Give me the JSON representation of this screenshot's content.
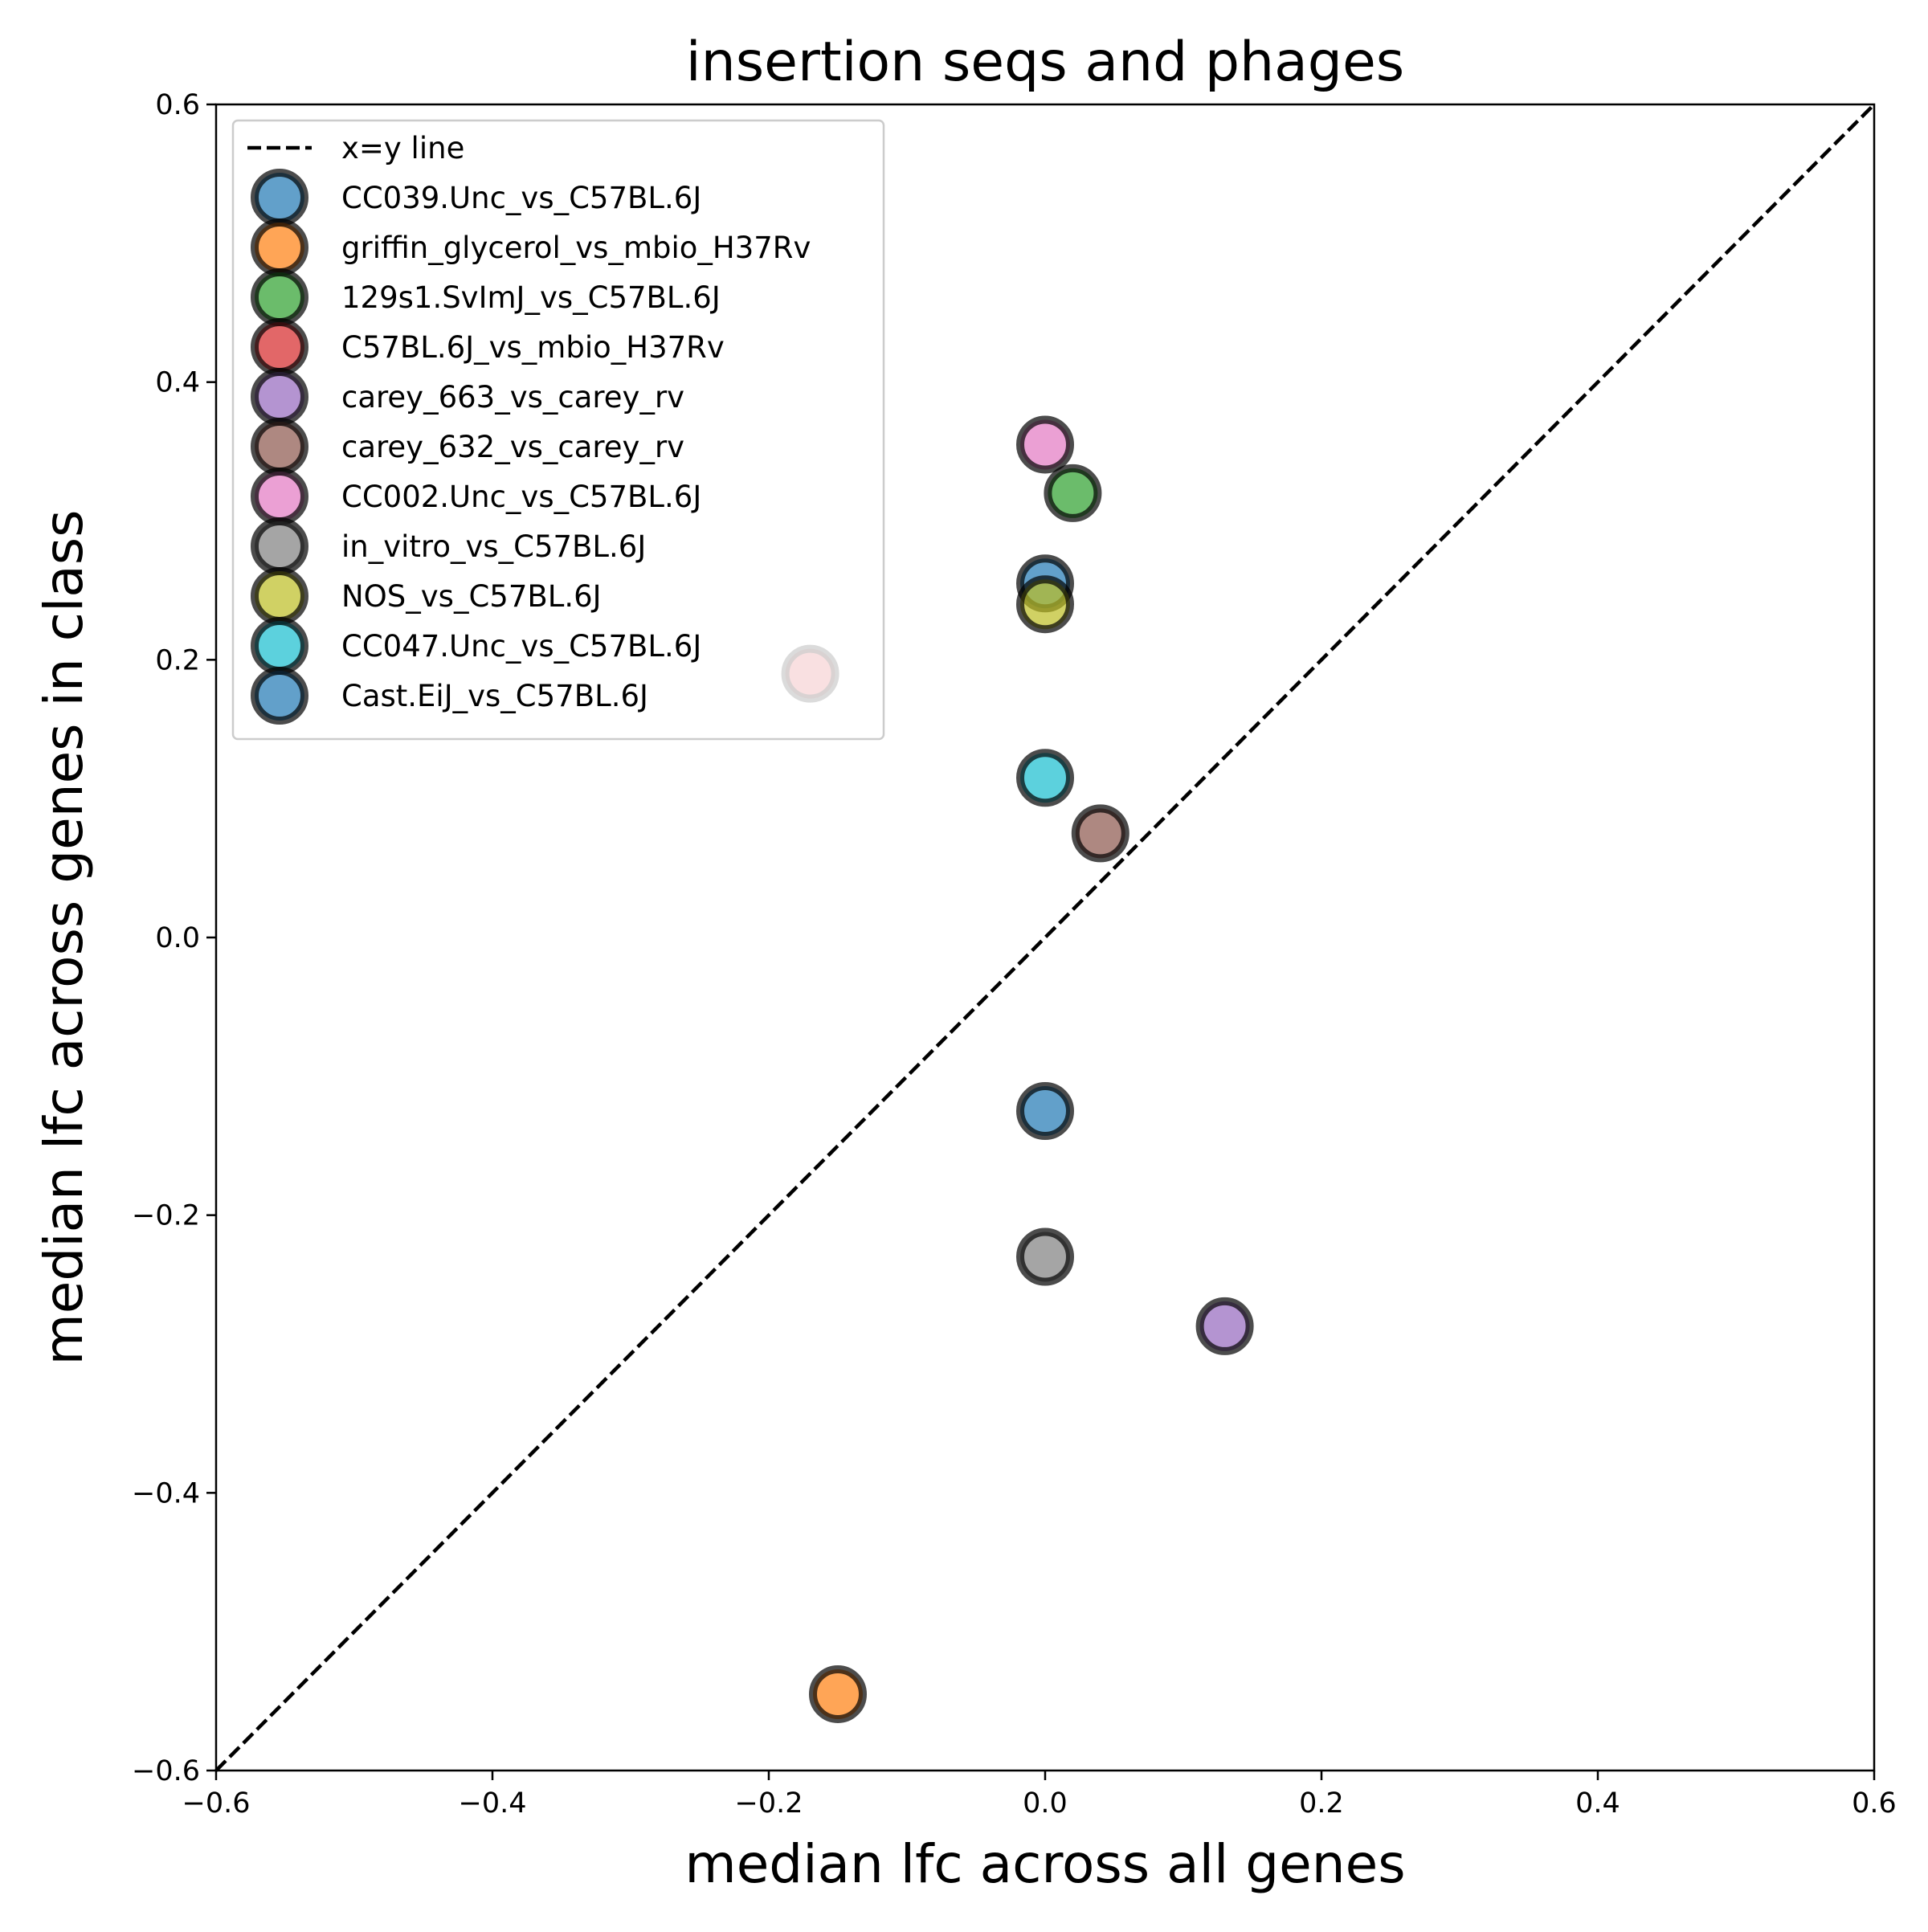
{
  "chart_data": {
    "type": "scatter",
    "title": "insertion seqs and phages",
    "xlabel": "median lfc across all genes",
    "ylabel": "median lfc across genes in class",
    "xlim": [
      -0.6,
      0.6
    ],
    "ylim": [
      -0.6,
      0.6
    ],
    "xticks": [
      "−0.6",
      "−0.4",
      "−0.2",
      "0.0",
      "0.2",
      "0.4",
      "0.6"
    ],
    "yticks": [
      "−0.6",
      "−0.4",
      "−0.2",
      "0.0",
      "0.2",
      "0.4",
      "0.6"
    ],
    "grid": false,
    "legend_position": "upper-left",
    "reference_line": {
      "name": "x=y line",
      "style": "dashed",
      "color": "#000000"
    },
    "series": [
      {
        "name": "CC039.Unc_vs_C57BL.6J",
        "color": "#1f77b4",
        "x": 0.0,
        "y": 0.255
      },
      {
        "name": "griffin_glycerol_vs_mbio_H37Rv",
        "color": "#ff7f0e",
        "x": -0.15,
        "y": -0.545
      },
      {
        "name": "129s1.SvImJ_vs_C57BL.6J",
        "color": "#2ca02c",
        "x": 0.02,
        "y": 0.32
      },
      {
        "name": "C57BL.6J_vs_mbio_H37Rv",
        "color": "#d62728",
        "x": -0.17,
        "y": 0.19
      },
      {
        "name": "carey_663_vs_carey_rv",
        "color": "#9467bd",
        "x": 0.13,
        "y": -0.28
      },
      {
        "name": "carey_632_vs_carey_rv",
        "color": "#8c564b",
        "x": 0.04,
        "y": 0.075
      },
      {
        "name": "CC002.Unc_vs_C57BL.6J",
        "color": "#e377c2",
        "x": 0.0,
        "y": 0.355
      },
      {
        "name": "in_vitro_vs_C57BL.6J",
        "color": "#7f7f7f",
        "x": 0.0,
        "y": -0.23
      },
      {
        "name": "NOS_vs_C57BL.6J",
        "color": "#bcbd22",
        "x": 0.0,
        "y": 0.24
      },
      {
        "name": "CC047.Unc_vs_C57BL.6J",
        "color": "#17becf",
        "x": 0.0,
        "y": 0.115
      },
      {
        "name": "Cast.EiJ_vs_C57BL.6J",
        "color": "#1f77b4",
        "x": 0.0,
        "y": -0.125
      }
    ]
  }
}
